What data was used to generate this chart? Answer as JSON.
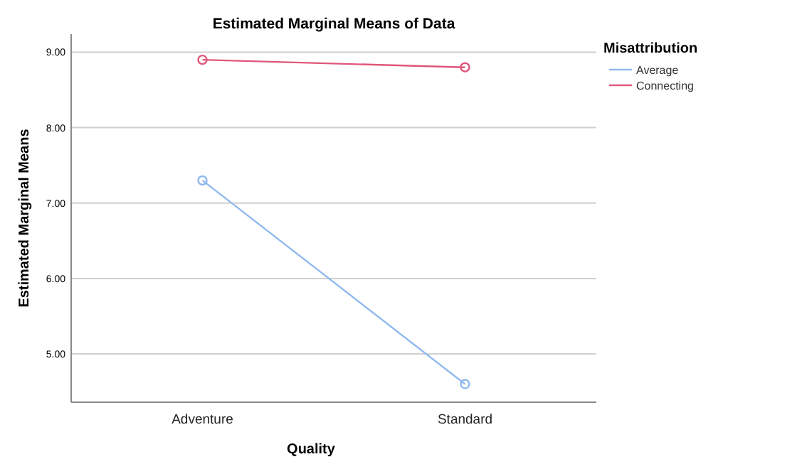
{
  "chart_data": {
    "type": "line",
    "title": "Estimated Marginal Means of Data",
    "xlabel": "Quality",
    "ylabel": "Estimated Marginal Means",
    "legend_title": "Misattribution",
    "categories": [
      "Adventure",
      "Standard"
    ],
    "series": [
      {
        "name": "Average",
        "color": "#8fb9ee",
        "values": [
          7.3,
          4.6
        ]
      },
      {
        "name": "Connecting",
        "color": "#e0567a",
        "values": [
          8.9,
          8.8
        ]
      }
    ],
    "ylim": [
      4.36,
      9.24
    ],
    "yticks": [
      {
        "value": 5,
        "label": "5.00"
      },
      {
        "value": 6,
        "label": "6.00"
      },
      {
        "value": 7,
        "label": "7.00"
      },
      {
        "value": 8,
        "label": "8.00"
      },
      {
        "value": 9,
        "label": "9.00"
      }
    ],
    "grid": "y",
    "legend": "top right",
    "marker": "circle",
    "line_style": "solid"
  }
}
